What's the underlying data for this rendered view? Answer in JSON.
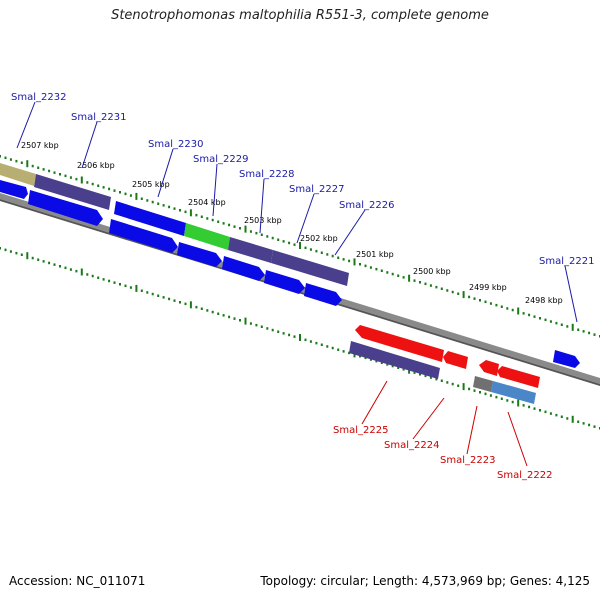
{
  "title": "Stenotrophomonas maltophilia R551-3, complete genome",
  "footer": {
    "accession": "Accession: NC_011071",
    "topology": "Topology: circular; Length: 4,573,969 bp; Genes: 4,125"
  },
  "colors": {
    "forward_label": "#1a1aa8",
    "reverse_label": "#cc0000",
    "backbone": "#8a8a8a",
    "tick": "#1a7a1a",
    "blue_gene": "#0a0ae6",
    "purple_gene": "#4a3f8c",
    "green_gene": "#33cc33",
    "olive_gene": "#b8ae72",
    "red_gene": "#ee1111",
    "steel_gene": "#4a86c8",
    "grey_gene": "#707070"
  },
  "scale_labels": [
    "2507 kbp",
    "2506 kbp",
    "2505 kbp",
    "2504 kbp",
    "2503 kbp",
    "2502 kbp",
    "2501 kbp",
    "2500 kbp",
    "2499 kbp",
    "2498 kbp"
  ],
  "forward_genes": [
    "Smal_2232",
    "Smal_2231",
    "Smal_2230",
    "Smal_2229",
    "Smal_2228",
    "Smal_2227",
    "Smal_2226",
    "Smal_2221"
  ],
  "reverse_genes": [
    "Smal_2225",
    "Smal_2224",
    "Smal_2223",
    "Smal_2222"
  ]
}
